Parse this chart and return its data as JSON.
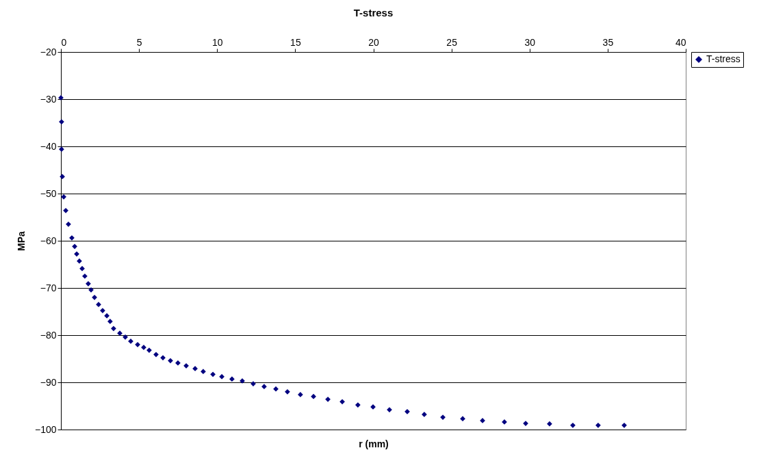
{
  "chart_data": {
    "type": "scatter",
    "title": "T-stress",
    "xlabel": "r (mm)",
    "ylabel": "MPa",
    "xlim": [
      0,
      40
    ],
    "xticks": [
      0,
      5,
      10,
      15,
      20,
      25,
      30,
      35,
      40
    ],
    "ylim": [
      -100,
      -20
    ],
    "yticks": [
      -100,
      -90,
      -80,
      -70,
      -60,
      -50,
      -40,
      -30,
      -20
    ],
    "grid": "y",
    "legend": "right",
    "marker": "diamond",
    "series": [
      {
        "name": "T-stress",
        "color": "#000080",
        "x": [
          0,
          0.04,
          0.04,
          0.09,
          0.18,
          0.31,
          0.48,
          0.7,
          0.88,
          1.01,
          1.18,
          1.36,
          1.53,
          1.75,
          1.93,
          2.15,
          2.41,
          2.67,
          2.94,
          3.15,
          3.37,
          3.77,
          4.12,
          4.47,
          4.91,
          5.3,
          5.65,
          6.09,
          6.53,
          7.01,
          7.49,
          8.02,
          8.59,
          9.11,
          9.73,
          10.3,
          10.95,
          11.61,
          12.31,
          13.01,
          13.76,
          14.5,
          15.33,
          16.17,
          17.09,
          18.01,
          19.01,
          19.98,
          21.03,
          22.17,
          23.26,
          24.45,
          25.72,
          26.99,
          28.39,
          29.75,
          31.28,
          32.77,
          34.39,
          36.06
        ],
        "values": [
          -29.7,
          -34.8,
          -40.6,
          -46.4,
          -50.7,
          -53.6,
          -56.5,
          -59.4,
          -61.2,
          -62.8,
          -64.3,
          -65.9,
          -67.5,
          -69.1,
          -70.4,
          -72,
          -73.5,
          -74.8,
          -75.9,
          -77.1,
          -78.6,
          -79.6,
          -80.4,
          -81.3,
          -82,
          -82.6,
          -83.2,
          -84.1,
          -84.8,
          -85.4,
          -85.9,
          -86.5,
          -87.1,
          -87.7,
          -88.3,
          -88.8,
          -89.3,
          -89.7,
          -90.3,
          -90.9,
          -91.4,
          -92,
          -92.6,
          -93,
          -93.6,
          -94.1,
          -94.8,
          -95.2,
          -95.8,
          -96.2,
          -96.8,
          -97.4,
          -97.7,
          -98.1,
          -98.4,
          -98.7,
          -98.8,
          -99.1,
          -99.1,
          -99.1
        ]
      }
    ]
  }
}
